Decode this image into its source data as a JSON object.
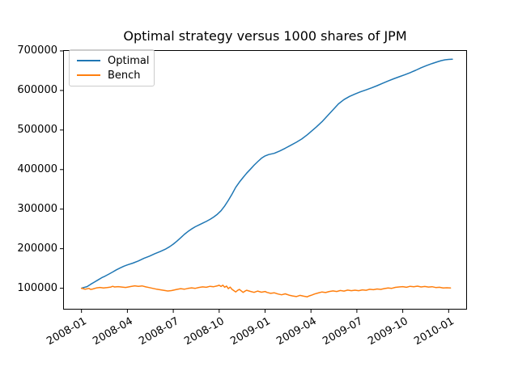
{
  "chart_data": {
    "type": "line",
    "title": "Optimal strategy versus 1000 shares of JPM",
    "grid": false,
    "background_color": "#ffffff",
    "spine_color": "#000000",
    "x_axis": {
      "lim": [
        2007.9,
        2010.1
      ],
      "label_rotation_deg": 30,
      "ticks": [
        {
          "t": 2008.0,
          "label": "2008-01"
        },
        {
          "t": 2008.25,
          "label": "2008-04"
        },
        {
          "t": 2008.5,
          "label": "2008-07"
        },
        {
          "t": 2008.75,
          "label": "2008-10"
        },
        {
          "t": 2009.0,
          "label": "2009-01"
        },
        {
          "t": 2009.25,
          "label": "2009-04"
        },
        {
          "t": 2009.5,
          "label": "2009-07"
        },
        {
          "t": 2009.75,
          "label": "2009-10"
        },
        {
          "t": 2010.0,
          "label": "2010-01"
        }
      ]
    },
    "y_axis": {
      "lim": [
        46000,
        702000
      ],
      "ticks": [
        {
          "v": 100000,
          "label": "100000"
        },
        {
          "v": 200000,
          "label": "200000"
        },
        {
          "v": 300000,
          "label": "300000"
        },
        {
          "v": 400000,
          "label": "400000"
        },
        {
          "v": 500000,
          "label": "500000"
        },
        {
          "v": 600000,
          "label": "600000"
        },
        {
          "v": 700000,
          "label": "700000"
        }
      ]
    },
    "legend": {
      "position": "upper-left",
      "entries": [
        {
          "name": "Optimal",
          "color": "#1f77b4"
        },
        {
          "name": "Bench",
          "color": "#ff7f0e"
        }
      ]
    },
    "series": [
      {
        "name": "Optimal",
        "color": "#1f77b4",
        "line_width": 1.5,
        "points": [
          [
            2008.0,
            100000
          ],
          [
            2008.01,
            101500
          ],
          [
            2008.03,
            104000
          ],
          [
            2008.05,
            110000
          ],
          [
            2008.07,
            115500
          ],
          [
            2008.09,
            121000
          ],
          [
            2008.11,
            126500
          ],
          [
            2008.13,
            131000
          ],
          [
            2008.15,
            136000
          ],
          [
            2008.17,
            141000
          ],
          [
            2008.19,
            146500
          ],
          [
            2008.21,
            151000
          ],
          [
            2008.23,
            155500
          ],
          [
            2008.25,
            159000
          ],
          [
            2008.28,
            163500
          ],
          [
            2008.31,
            169000
          ],
          [
            2008.34,
            175500
          ],
          [
            2008.37,
            181000
          ],
          [
            2008.4,
            187500
          ],
          [
            2008.43,
            193000
          ],
          [
            2008.46,
            199500
          ],
          [
            2008.48,
            205000
          ],
          [
            2008.5,
            211500
          ],
          [
            2008.52,
            219000
          ],
          [
            2008.54,
            227500
          ],
          [
            2008.56,
            236000
          ],
          [
            2008.58,
            243500
          ],
          [
            2008.6,
            250000
          ],
          [
            2008.62,
            255500
          ],
          [
            2008.64,
            260000
          ],
          [
            2008.66,
            264500
          ],
          [
            2008.68,
            269000
          ],
          [
            2008.7,
            274000
          ],
          [
            2008.72,
            280000
          ],
          [
            2008.74,
            287000
          ],
          [
            2008.76,
            296000
          ],
          [
            2008.78,
            308000
          ],
          [
            2008.8,
            322000
          ],
          [
            2008.82,
            338000
          ],
          [
            2008.84,
            355000
          ],
          [
            2008.86,
            368000
          ],
          [
            2008.88,
            380000
          ],
          [
            2008.9,
            391000
          ],
          [
            2008.92,
            401000
          ],
          [
            2008.94,
            411000
          ],
          [
            2008.96,
            420000
          ],
          [
            2008.98,
            428500
          ],
          [
            2009.0,
            434500
          ],
          [
            2009.02,
            438000
          ],
          [
            2009.05,
            441000
          ],
          [
            2009.08,
            447000
          ],
          [
            2009.11,
            454000
          ],
          [
            2009.14,
            461500
          ],
          [
            2009.17,
            469000
          ],
          [
            2009.2,
            477500
          ],
          [
            2009.23,
            488000
          ],
          [
            2009.25,
            496000
          ],
          [
            2009.28,
            508000
          ],
          [
            2009.31,
            521000
          ],
          [
            2009.34,
            536000
          ],
          [
            2009.37,
            551000
          ],
          [
            2009.4,
            566000
          ],
          [
            2009.43,
            577000
          ],
          [
            2009.46,
            585000
          ],
          [
            2009.49,
            591000
          ],
          [
            2009.52,
            596500
          ],
          [
            2009.55,
            601500
          ],
          [
            2009.58,
            606500
          ],
          [
            2009.61,
            612000
          ],
          [
            2009.64,
            618000
          ],
          [
            2009.67,
            624000
          ],
          [
            2009.7,
            629500
          ],
          [
            2009.73,
            634500
          ],
          [
            2009.76,
            639500
          ],
          [
            2009.79,
            645000
          ],
          [
            2009.82,
            651000
          ],
          [
            2009.85,
            657500
          ],
          [
            2009.88,
            663000
          ],
          [
            2009.91,
            668000
          ],
          [
            2009.94,
            672500
          ],
          [
            2009.96,
            675500
          ],
          [
            2009.98,
            677500
          ],
          [
            2010.0,
            678500
          ],
          [
            2010.02,
            679000
          ]
        ]
      },
      {
        "name": "Bench",
        "color": "#ff7f0e",
        "line_width": 1.5,
        "points": [
          [
            2008.0,
            100000
          ],
          [
            2008.01,
            99000
          ],
          [
            2008.02,
            97500
          ],
          [
            2008.03,
            98500
          ],
          [
            2008.04,
            99500
          ],
          [
            2008.05,
            97000
          ],
          [
            2008.06,
            98000
          ],
          [
            2008.08,
            100500
          ],
          [
            2008.1,
            102000
          ],
          [
            2008.12,
            100500
          ],
          [
            2008.14,
            101500
          ],
          [
            2008.16,
            103000
          ],
          [
            2008.17,
            104800
          ],
          [
            2008.18,
            103200
          ],
          [
            2008.2,
            104000
          ],
          [
            2008.22,
            103000
          ],
          [
            2008.24,
            102000
          ],
          [
            2008.25,
            102800
          ],
          [
            2008.27,
            104500
          ],
          [
            2008.29,
            106000
          ],
          [
            2008.31,
            104800
          ],
          [
            2008.33,
            105800
          ],
          [
            2008.35,
            103500
          ],
          [
            2008.37,
            101500
          ],
          [
            2008.39,
            99500
          ],
          [
            2008.41,
            97500
          ],
          [
            2008.43,
            96000
          ],
          [
            2008.45,
            94500
          ],
          [
            2008.47,
            93000
          ],
          [
            2008.49,
            94000
          ],
          [
            2008.5,
            95000
          ],
          [
            2008.52,
            97000
          ],
          [
            2008.54,
            99000
          ],
          [
            2008.56,
            97500
          ],
          [
            2008.58,
            99500
          ],
          [
            2008.6,
            101000
          ],
          [
            2008.62,
            99800
          ],
          [
            2008.64,
            102000
          ],
          [
            2008.66,
            103500
          ],
          [
            2008.68,
            102500
          ],
          [
            2008.7,
            104800
          ],
          [
            2008.72,
            103800
          ],
          [
            2008.74,
            106000
          ],
          [
            2008.75,
            107500
          ],
          [
            2008.76,
            104500
          ],
          [
            2008.77,
            107800
          ],
          [
            2008.78,
            102500
          ],
          [
            2008.79,
            105500
          ],
          [
            2008.8,
            99000
          ],
          [
            2008.81,
            102800
          ],
          [
            2008.82,
            97000
          ],
          [
            2008.83,
            94000
          ],
          [
            2008.84,
            90500
          ],
          [
            2008.85,
            94500
          ],
          [
            2008.86,
            97000
          ],
          [
            2008.87,
            93500
          ],
          [
            2008.88,
            89500
          ],
          [
            2008.89,
            92500
          ],
          [
            2008.9,
            94800
          ],
          [
            2008.92,
            92000
          ],
          [
            2008.94,
            89500
          ],
          [
            2008.96,
            92800
          ],
          [
            2008.98,
            90000
          ],
          [
            2009.0,
            91800
          ],
          [
            2009.01,
            89500
          ],
          [
            2009.03,
            87000
          ],
          [
            2009.05,
            88500
          ],
          [
            2009.07,
            85500
          ],
          [
            2009.09,
            83500
          ],
          [
            2009.11,
            85800
          ],
          [
            2009.13,
            82500
          ],
          [
            2009.15,
            80500
          ],
          [
            2009.17,
            79000
          ],
          [
            2009.19,
            82000
          ],
          [
            2009.21,
            80000
          ],
          [
            2009.23,
            78200
          ],
          [
            2009.24,
            80500
          ],
          [
            2009.25,
            82000
          ],
          [
            2009.27,
            85500
          ],
          [
            2009.29,
            88000
          ],
          [
            2009.31,
            90500
          ],
          [
            2009.33,
            89200
          ],
          [
            2009.35,
            91800
          ],
          [
            2009.37,
            93200
          ],
          [
            2009.39,
            91800
          ],
          [
            2009.41,
            94200
          ],
          [
            2009.43,
            92800
          ],
          [
            2009.45,
            95200
          ],
          [
            2009.47,
            93800
          ],
          [
            2009.49,
            95000
          ],
          [
            2009.51,
            93800
          ],
          [
            2009.53,
            95800
          ],
          [
            2009.55,
            94800
          ],
          [
            2009.57,
            97200
          ],
          [
            2009.59,
            96200
          ],
          [
            2009.61,
            98200
          ],
          [
            2009.63,
            97000
          ],
          [
            2009.65,
            99200
          ],
          [
            2009.67,
            100800
          ],
          [
            2009.69,
            99800
          ],
          [
            2009.71,
            102200
          ],
          [
            2009.73,
            103200
          ],
          [
            2009.75,
            104000
          ],
          [
            2009.77,
            102500
          ],
          [
            2009.79,
            104800
          ],
          [
            2009.81,
            103800
          ],
          [
            2009.83,
            105200
          ],
          [
            2009.85,
            103200
          ],
          [
            2009.87,
            104500
          ],
          [
            2009.89,
            103000
          ],
          [
            2009.91,
            103800
          ],
          [
            2009.93,
            101800
          ],
          [
            2009.95,
            102500
          ],
          [
            2009.97,
            100800
          ],
          [
            2009.99,
            101200
          ],
          [
            2010.01,
            100800
          ]
        ]
      }
    ]
  }
}
